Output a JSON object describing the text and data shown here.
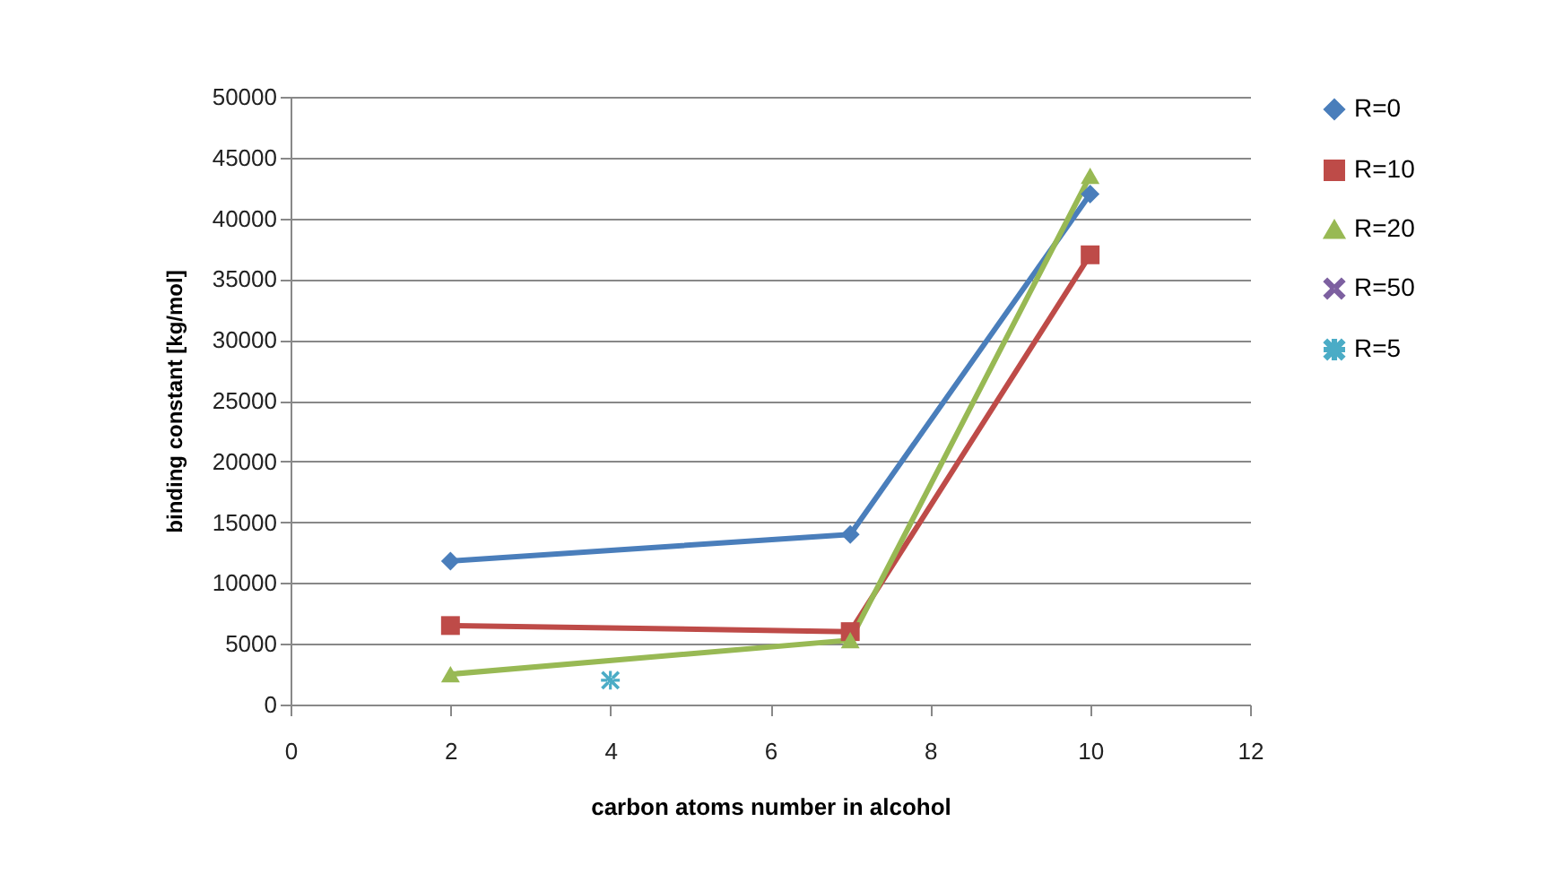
{
  "chart_data": {
    "type": "line",
    "xlabel": "carbon atoms number in alcohol",
    "ylabel": "binding constant  [kg/mol]",
    "xlim": [
      0,
      12
    ],
    "xticks": [
      0,
      2,
      4,
      6,
      8,
      10,
      12
    ],
    "ylim": [
      0,
      50000
    ],
    "yticks": [
      0,
      5000,
      10000,
      15000,
      20000,
      25000,
      30000,
      35000,
      40000,
      45000,
      50000
    ],
    "grid": "y",
    "legend": "right",
    "series": [
      {
        "name": "R=0",
        "color": "#4a7ebb",
        "marker": "diamond",
        "x": [
          2,
          7,
          10
        ],
        "values": [
          11800,
          14000,
          42000
        ]
      },
      {
        "name": "R=10",
        "color": "#be4b48",
        "marker": "square",
        "x": [
          2,
          7,
          10
        ],
        "values": [
          6500,
          6000,
          37000
        ]
      },
      {
        "name": "R=20",
        "color": "#98b954",
        "marker": "triangle",
        "x": [
          2,
          7,
          10
        ],
        "values": [
          2500,
          5300,
          43500
        ]
      },
      {
        "name": "R=50",
        "color": "#7d60a0",
        "marker": "cross"
      },
      {
        "name": "R=5",
        "color": "#4bacc6",
        "marker": "star",
        "x": [
          4
        ],
        "values": [
          2000
        ]
      }
    ]
  }
}
